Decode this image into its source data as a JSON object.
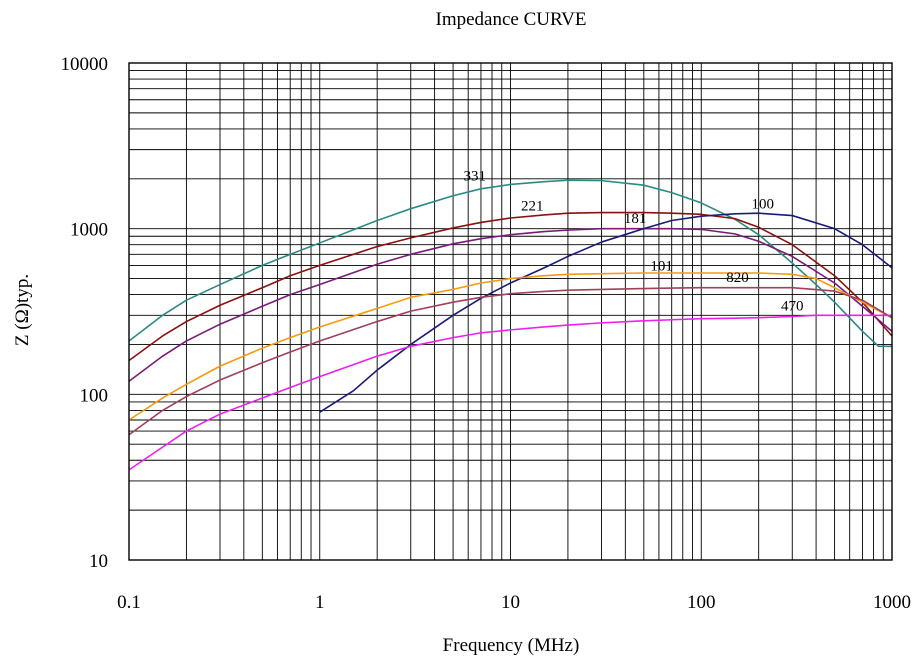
{
  "chart_data": {
    "type": "line",
    "title": "Impedance CURVE",
    "xlabel": "Frequency (MHz)",
    "ylabel": "Z (Ω)typ.",
    "x_scale": "log",
    "y_scale": "log",
    "xlim": [
      0.1,
      1000
    ],
    "ylim": [
      10,
      10000
    ],
    "x_ticks": [
      "0.1",
      "1",
      "10",
      "100",
      "1000"
    ],
    "y_ticks": [
      "10",
      "100",
      "1000",
      "10000"
    ],
    "grid": true,
    "series": [
      {
        "name": "331",
        "color": "#2a8a84",
        "label_at": [
          6.5,
          1960
        ],
        "points": [
          [
            0.1,
            210
          ],
          [
            0.15,
            300
          ],
          [
            0.2,
            370
          ],
          [
            0.3,
            460
          ],
          [
            0.5,
            600
          ],
          [
            0.7,
            700
          ],
          [
            1,
            820
          ],
          [
            2,
            1120
          ],
          [
            3,
            1320
          ],
          [
            5,
            1580
          ],
          [
            7,
            1740
          ],
          [
            10,
            1850
          ],
          [
            15,
            1920
          ],
          [
            20,
            1960
          ],
          [
            30,
            1950
          ],
          [
            50,
            1830
          ],
          [
            70,
            1650
          ],
          [
            100,
            1430
          ],
          [
            150,
            1140
          ],
          [
            200,
            920
          ],
          [
            300,
            620
          ],
          [
            400,
            460
          ],
          [
            500,
            360
          ],
          [
            700,
            240
          ],
          [
            850,
            195
          ],
          [
            1000,
            195
          ]
        ]
      },
      {
        "name": "221",
        "color": "#8b1010",
        "label_at": [
          13,
          1290
        ],
        "points": [
          [
            0.1,
            160
          ],
          [
            0.15,
            225
          ],
          [
            0.2,
            275
          ],
          [
            0.3,
            345
          ],
          [
            0.5,
            440
          ],
          [
            0.7,
            520
          ],
          [
            1,
            600
          ],
          [
            2,
            780
          ],
          [
            3,
            880
          ],
          [
            5,
            1010
          ],
          [
            7,
            1090
          ],
          [
            10,
            1160
          ],
          [
            15,
            1210
          ],
          [
            20,
            1240
          ],
          [
            30,
            1250
          ],
          [
            50,
            1250
          ],
          [
            70,
            1240
          ],
          [
            100,
            1220
          ],
          [
            150,
            1150
          ],
          [
            200,
            1020
          ],
          [
            300,
            800
          ],
          [
            500,
            520
          ],
          [
            700,
            360
          ],
          [
            1000,
            225
          ]
        ]
      },
      {
        "name": "181",
        "color": "#7a1a7a",
        "label_at": [
          45,
          1080
        ],
        "points": [
          [
            0.1,
            120
          ],
          [
            0.15,
            170
          ],
          [
            0.2,
            210
          ],
          [
            0.3,
            265
          ],
          [
            0.5,
            340
          ],
          [
            0.7,
            400
          ],
          [
            1,
            460
          ],
          [
            2,
            610
          ],
          [
            3,
            700
          ],
          [
            5,
            810
          ],
          [
            7,
            870
          ],
          [
            10,
            920
          ],
          [
            15,
            960
          ],
          [
            20,
            980
          ],
          [
            30,
            1000
          ],
          [
            50,
            1000
          ],
          [
            70,
            1000
          ],
          [
            100,
            990
          ],
          [
            150,
            930
          ],
          [
            200,
            840
          ],
          [
            300,
            680
          ],
          [
            500,
            470
          ],
          [
            700,
            340
          ],
          [
            1000,
            240
          ]
        ]
      },
      {
        "name": "100",
        "color": "#1a1a7a",
        "label_at": [
          210,
          1320
        ],
        "points": [
          [
            1,
            78
          ],
          [
            1.5,
            105
          ],
          [
            2,
            140
          ],
          [
            3,
            200
          ],
          [
            5,
            300
          ],
          [
            7,
            380
          ],
          [
            10,
            470
          ],
          [
            15,
            580
          ],
          [
            20,
            680
          ],
          [
            30,
            830
          ],
          [
            50,
            1000
          ],
          [
            70,
            1120
          ],
          [
            100,
            1190
          ],
          [
            150,
            1230
          ],
          [
            200,
            1240
          ],
          [
            300,
            1200
          ],
          [
            500,
            1000
          ],
          [
            700,
            800
          ],
          [
            1000,
            580
          ]
        ]
      },
      {
        "name": "101",
        "color": "#f59a10",
        "label_at": [
          62,
          560
        ],
        "points": [
          [
            0.1,
            70
          ],
          [
            0.15,
            95
          ],
          [
            0.2,
            115
          ],
          [
            0.3,
            148
          ],
          [
            0.5,
            190
          ],
          [
            0.7,
            220
          ],
          [
            1,
            255
          ],
          [
            2,
            330
          ],
          [
            3,
            385
          ],
          [
            5,
            430
          ],
          [
            7,
            470
          ],
          [
            10,
            500
          ],
          [
            15,
            520
          ],
          [
            20,
            530
          ],
          [
            30,
            535
          ],
          [
            50,
            540
          ],
          [
            70,
            540
          ],
          [
            100,
            540
          ],
          [
            150,
            540
          ],
          [
            200,
            540
          ],
          [
            300,
            530
          ],
          [
            400,
            500
          ],
          [
            500,
            440
          ],
          [
            700,
            360
          ],
          [
            1000,
            290
          ]
        ]
      },
      {
        "name": "820",
        "color": "#a0405a",
        "label_at": [
          155,
          475
        ],
        "points": [
          [
            0.1,
            57
          ],
          [
            0.15,
            80
          ],
          [
            0.2,
            97
          ],
          [
            0.3,
            122
          ],
          [
            0.5,
            155
          ],
          [
            0.7,
            180
          ],
          [
            1,
            210
          ],
          [
            2,
            275
          ],
          [
            3,
            318
          ],
          [
            5,
            360
          ],
          [
            7,
            385
          ],
          [
            10,
            405
          ],
          [
            15,
            418
          ],
          [
            20,
            425
          ],
          [
            30,
            430
          ],
          [
            50,
            435
          ],
          [
            70,
            438
          ],
          [
            100,
            440
          ],
          [
            150,
            440
          ],
          [
            200,
            440
          ],
          [
            300,
            440
          ],
          [
            500,
            420
          ],
          [
            700,
            370
          ],
          [
            1000,
            290
          ]
        ]
      },
      {
        "name": "470",
        "color": "#ee20ee",
        "label_at": [
          300,
          320
        ],
        "points": [
          [
            0.1,
            35
          ],
          [
            0.15,
            48
          ],
          [
            0.2,
            60
          ],
          [
            0.3,
            76
          ],
          [
            0.5,
            95
          ],
          [
            0.7,
            110
          ],
          [
            1,
            128
          ],
          [
            2,
            170
          ],
          [
            3,
            195
          ],
          [
            5,
            220
          ],
          [
            7,
            235
          ],
          [
            10,
            245
          ],
          [
            15,
            255
          ],
          [
            20,
            262
          ],
          [
            30,
            270
          ],
          [
            50,
            278
          ],
          [
            70,
            282
          ],
          [
            100,
            286
          ],
          [
            150,
            288
          ],
          [
            200,
            290
          ],
          [
            300,
            295
          ],
          [
            400,
            300
          ],
          [
            500,
            300
          ],
          [
            700,
            300
          ],
          [
            1000,
            300
          ]
        ]
      }
    ]
  }
}
